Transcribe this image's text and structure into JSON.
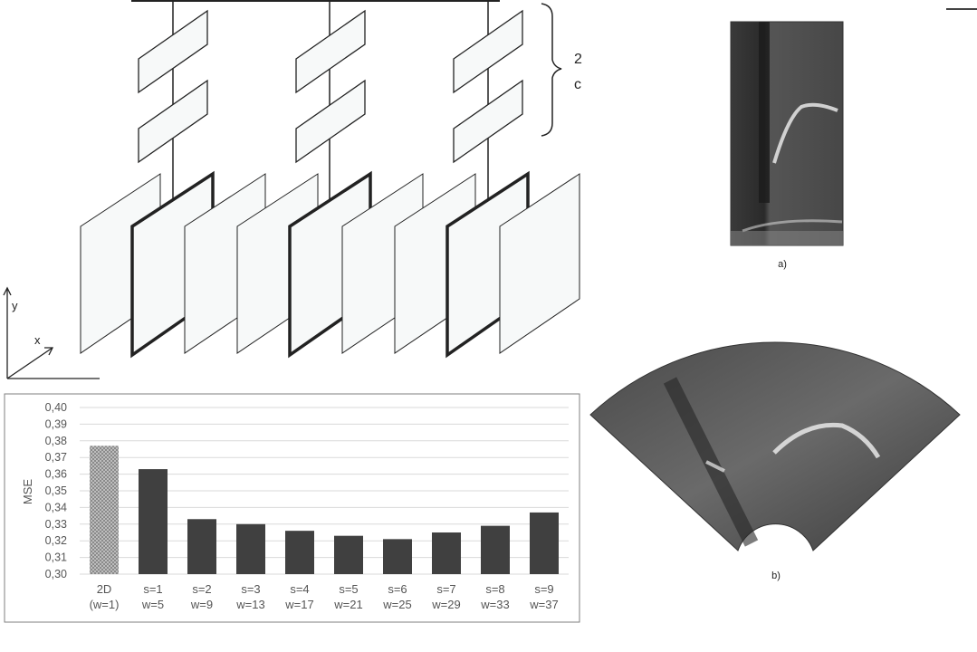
{
  "diagram": {
    "axis_labels": {
      "y": "y",
      "x": "x"
    },
    "brace_fragments": [
      "2",
      "c"
    ]
  },
  "images": {
    "a": {
      "caption": "a)"
    },
    "b": {
      "caption": "b)"
    }
  },
  "chart_data": {
    "type": "bar",
    "title": "",
    "xlabel": "",
    "ylabel": "MSE",
    "ylim": [
      0.3,
      0.4
    ],
    "ytick_step": 0.01,
    "yticks": [
      "0,40",
      "0,39",
      "0,38",
      "0,37",
      "0,36",
      "0,35",
      "0,34",
      "0,33",
      "0,32",
      "0,31",
      "0,30"
    ],
    "grid": true,
    "categories": [
      [
        "2D",
        "(w=1)"
      ],
      [
        "s=1",
        "w=5"
      ],
      [
        "s=2",
        "w=9"
      ],
      [
        "s=3",
        "w=13"
      ],
      [
        "s=4",
        "w=17"
      ],
      [
        "s=5",
        "w=21"
      ],
      [
        "s=6",
        "w=25"
      ],
      [
        "s=7",
        "w=29"
      ],
      [
        "s=8",
        "w=33"
      ],
      [
        "s=9",
        "w=37"
      ]
    ],
    "values": [
      0.377,
      0.363,
      0.333,
      0.33,
      0.326,
      0.323,
      0.321,
      0.325,
      0.329,
      0.337
    ],
    "colors": {
      "baseline": "#9a9a9a",
      "bars": "#404040",
      "grid": "#d9d9d9",
      "frame": "#7f7f7f"
    }
  }
}
